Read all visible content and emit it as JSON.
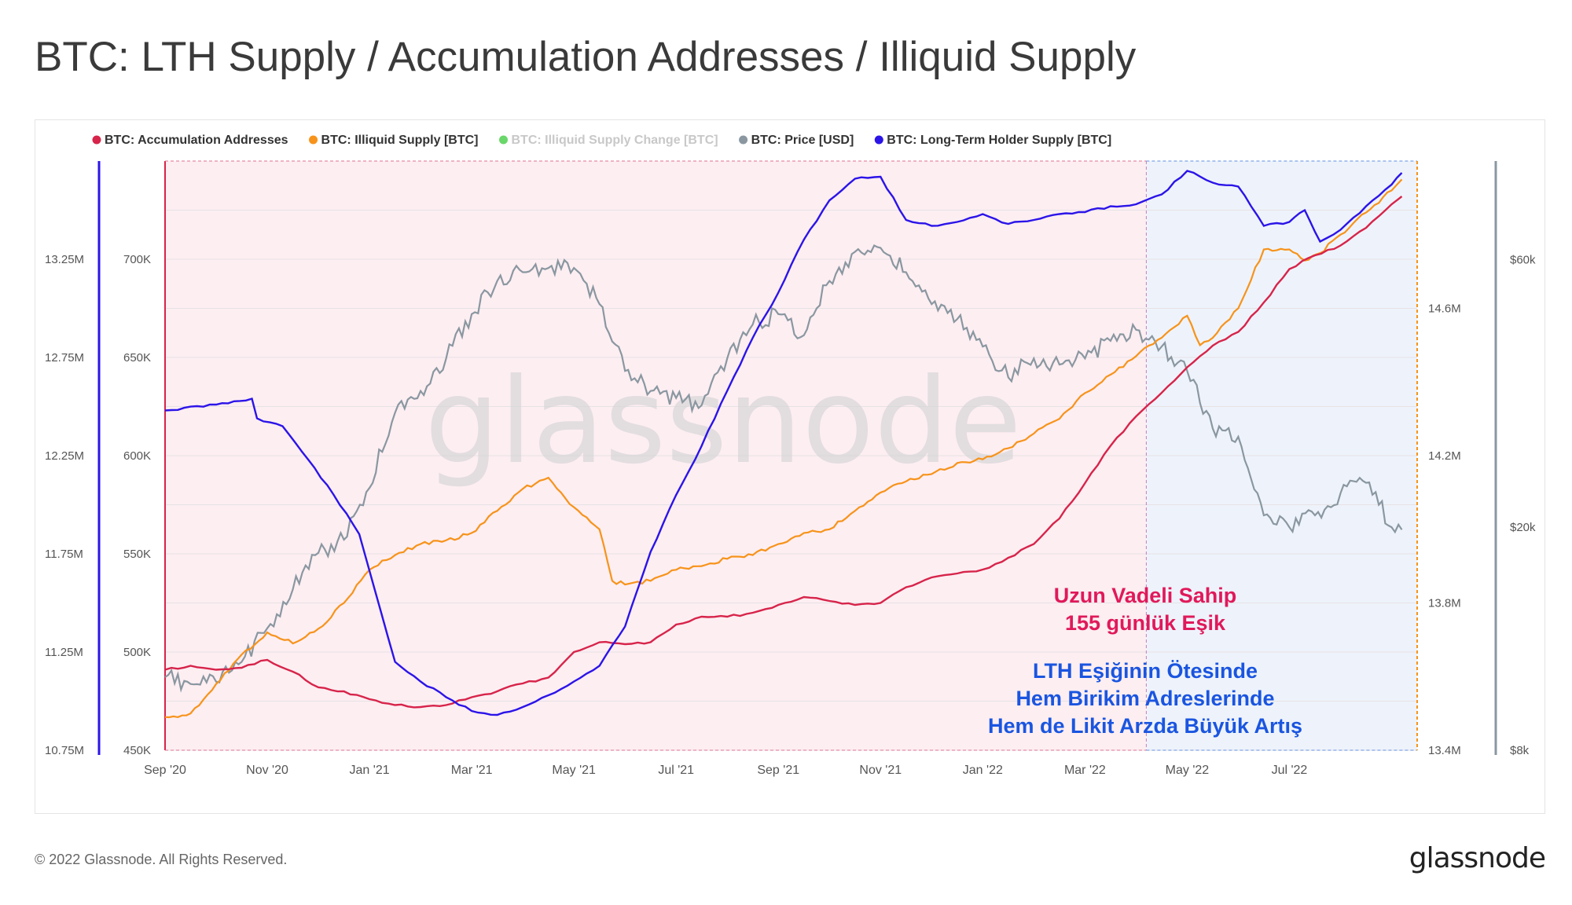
{
  "header": {
    "title": "BTC: LTH Supply / Accumulation Addresses / Illiquid Supply"
  },
  "footer": {
    "copyright": "© 2022 Glassnode. All Rights Reserved.",
    "brand": "glassnode"
  },
  "watermark": "glassnode",
  "colors": {
    "accumulation": "#d7244a",
    "illiquid": "#f7931a",
    "illiquid_change": "#37c937",
    "price": "#8a97a0",
    "lth": "#2b14e8",
    "pink_region": "#fdeef2",
    "blue_region": "#eef3fb"
  },
  "annotations": {
    "threshold_title": "Uzun Vadeli Sahip",
    "threshold_sub": "155 günlük Eşik",
    "beyond_1": "LTH Eşiğinin Ötesinde",
    "beyond_2": "Hem Birikim Adreslerinde",
    "beyond_3": "Hem de Likit Arzda Büyük Artış"
  },
  "chart_data": {
    "type": "line",
    "title": "BTC: LTH Supply / Accumulation Addresses / Illiquid Supply",
    "legend_position": "top-left",
    "legend": [
      {
        "name": "BTC: Accumulation Addresses",
        "color": "#d7244a",
        "faded": false
      },
      {
        "name": "BTC: Illiquid Supply [BTC]",
        "color": "#f7931a",
        "faded": false
      },
      {
        "name": "BTC: Illiquid Supply Change [BTC]",
        "color": "#37c937",
        "faded": true
      },
      {
        "name": "BTC: Price [USD]",
        "color": "#8a97a0",
        "faded": false
      },
      {
        "name": "BTC: Long-Term Holder Supply [BTC]",
        "color": "#2b14e8",
        "faded": false
      }
    ],
    "x_range_months": [
      0,
      24.5
    ],
    "x_ticks": [
      {
        "m": 0,
        "label": "Sep '20"
      },
      {
        "m": 2,
        "label": "Nov '20"
      },
      {
        "m": 4,
        "label": "Jan '21"
      },
      {
        "m": 6,
        "label": "Mar '21"
      },
      {
        "m": 8,
        "label": "May '21"
      },
      {
        "m": 10,
        "label": "Jul '21"
      },
      {
        "m": 12,
        "label": "Sep '21"
      },
      {
        "m": 14,
        "label": "Nov '21"
      },
      {
        "m": 16,
        "label": "Jan '22"
      },
      {
        "m": 18,
        "label": "Mar '22"
      },
      {
        "m": 20,
        "label": "May '22"
      },
      {
        "m": 22,
        "label": "Jul '22"
      }
    ],
    "regions": [
      {
        "name": "lth-threshold",
        "from_m": 0,
        "to_m": 19.2
      },
      {
        "name": "beyond-threshold",
        "from_m": 19.2,
        "to_m": 24.5
      }
    ],
    "axes": {
      "lth": {
        "range": [
          10.75,
          13.75
        ],
        "ticks": [
          "10.75M",
          "11.25M",
          "11.75M",
          "12.25M",
          "12.75M",
          "13.25M"
        ],
        "tick_values": [
          10.75,
          11.25,
          11.75,
          12.25,
          12.75,
          13.25
        ]
      },
      "accumulation": {
        "range": [
          450,
          750
        ],
        "ticks": [
          "450K",
          "500K",
          "550K",
          "600K",
          "650K",
          "700K"
        ],
        "tick_values": [
          450,
          500,
          550,
          600,
          650,
          700
        ]
      },
      "illiquid": {
        "range": [
          13.4,
          15.0
        ],
        "ticks": [
          "13.4M",
          "13.8M",
          "14.2M",
          "14.6M"
        ],
        "tick_values": [
          13.4,
          13.8,
          14.2,
          14.6
        ]
      },
      "price": {
        "log": true,
        "range": [
          8000,
          90000
        ],
        "ticks": [
          "$8k",
          "$20k",
          "$60k"
        ],
        "tick_values": [
          8000,
          20000,
          60000
        ]
      }
    },
    "series": [
      {
        "name": "BTC: Long-Term Holder Supply [BTC]",
        "axis": "lth",
        "unit": "M BTC",
        "points": [
          [
            0,
            12.48
          ],
          [
            1,
            12.51
          ],
          [
            1.7,
            12.54
          ],
          [
            1.8,
            12.44
          ],
          [
            2.3,
            12.4
          ],
          [
            2.8,
            12.23
          ],
          [
            3.3,
            12.05
          ],
          [
            3.8,
            11.85
          ],
          [
            4.1,
            11.57
          ],
          [
            4.5,
            11.2
          ],
          [
            5,
            11.1
          ],
          [
            5.5,
            11.02
          ],
          [
            6,
            10.95
          ],
          [
            6.5,
            10.93
          ],
          [
            7,
            10.97
          ],
          [
            7.5,
            11.03
          ],
          [
            8,
            11.1
          ],
          [
            8.5,
            11.18
          ],
          [
            9,
            11.38
          ],
          [
            9.5,
            11.76
          ],
          [
            10,
            12.05
          ],
          [
            10.5,
            12.3
          ],
          [
            11,
            12.58
          ],
          [
            11.5,
            12.85
          ],
          [
            12,
            13.08
          ],
          [
            12.5,
            13.35
          ],
          [
            13,
            13.55
          ],
          [
            13.5,
            13.66
          ],
          [
            14,
            13.67
          ],
          [
            14.5,
            13.45
          ],
          [
            15,
            13.42
          ],
          [
            15.5,
            13.44
          ],
          [
            16,
            13.48
          ],
          [
            16.5,
            13.43
          ],
          [
            17,
            13.45
          ],
          [
            17.5,
            13.48
          ],
          [
            18,
            13.49
          ],
          [
            18.5,
            13.52
          ],
          [
            19,
            13.53
          ],
          [
            19.5,
            13.58
          ],
          [
            20,
            13.7
          ],
          [
            20.5,
            13.64
          ],
          [
            21,
            13.62
          ],
          [
            21.5,
            13.42
          ],
          [
            22,
            13.44
          ],
          [
            22.3,
            13.5
          ],
          [
            22.6,
            13.34
          ],
          [
            23,
            13.4
          ],
          [
            23.5,
            13.52
          ],
          [
            24,
            13.63
          ],
          [
            24.2,
            13.69
          ]
        ]
      },
      {
        "name": "BTC: Accumulation Addresses",
        "axis": "accumulation",
        "unit": "K",
        "points": [
          [
            0,
            491
          ],
          [
            0.5,
            493
          ],
          [
            1,
            491
          ],
          [
            1.5,
            492
          ],
          [
            2,
            496
          ],
          [
            2.5,
            490
          ],
          [
            3,
            482
          ],
          [
            3.5,
            480
          ],
          [
            4,
            476
          ],
          [
            4.5,
            473
          ],
          [
            5,
            472
          ],
          [
            5.5,
            473
          ],
          [
            6,
            477
          ],
          [
            6.5,
            480
          ],
          [
            7,
            484
          ],
          [
            7.5,
            487
          ],
          [
            8,
            500
          ],
          [
            8.5,
            505
          ],
          [
            9,
            504
          ],
          [
            9.5,
            505
          ],
          [
            10,
            514
          ],
          [
            10.5,
            518
          ],
          [
            11,
            518
          ],
          [
            11.5,
            520
          ],
          [
            12,
            524
          ],
          [
            12.5,
            528
          ],
          [
            13,
            526
          ],
          [
            13.5,
            524
          ],
          [
            14,
            525
          ],
          [
            14.5,
            533
          ],
          [
            15,
            538
          ],
          [
            15.5,
            540
          ],
          [
            16,
            542
          ],
          [
            16.5,
            548
          ],
          [
            17,
            555
          ],
          [
            17.5,
            568
          ],
          [
            18,
            586
          ],
          [
            18.5,
            605
          ],
          [
            19,
            620
          ],
          [
            19.5,
            632
          ],
          [
            20,
            645
          ],
          [
            20.5,
            656
          ],
          [
            21,
            663
          ],
          [
            21.5,
            678
          ],
          [
            22,
            695
          ],
          [
            22.5,
            702
          ],
          [
            23,
            707
          ],
          [
            23.5,
            716
          ],
          [
            24,
            728
          ],
          [
            24.2,
            732
          ]
        ]
      },
      {
        "name": "BTC: Illiquid Supply [BTC]",
        "axis": "illiquid",
        "unit": "M BTC",
        "points": [
          [
            0,
            13.49
          ],
          [
            0.5,
            13.5
          ],
          [
            1,
            13.58
          ],
          [
            1.5,
            13.66
          ],
          [
            2,
            13.72
          ],
          [
            2.5,
            13.69
          ],
          [
            3,
            13.73
          ],
          [
            3.5,
            13.8
          ],
          [
            4,
            13.89
          ],
          [
            4.5,
            13.93
          ],
          [
            5,
            13.96
          ],
          [
            5.5,
            13.97
          ],
          [
            6,
            13.99
          ],
          [
            6.5,
            14.05
          ],
          [
            7,
            14.11
          ],
          [
            7.5,
            14.14
          ],
          [
            8,
            14.06
          ],
          [
            8.5,
            14.0
          ],
          [
            8.75,
            13.86
          ],
          [
            9,
            13.85
          ],
          [
            9.5,
            13.86
          ],
          [
            10,
            13.89
          ],
          [
            10.5,
            13.9
          ],
          [
            11,
            13.92
          ],
          [
            11.5,
            13.93
          ],
          [
            12,
            13.96
          ],
          [
            12.5,
            13.99
          ],
          [
            13,
            14.0
          ],
          [
            13.5,
            14.05
          ],
          [
            14,
            14.1
          ],
          [
            14.5,
            14.13
          ],
          [
            15,
            14.15
          ],
          [
            15.5,
            14.18
          ],
          [
            16,
            14.19
          ],
          [
            16.5,
            14.22
          ],
          [
            17,
            14.26
          ],
          [
            17.5,
            14.3
          ],
          [
            18,
            14.37
          ],
          [
            18.5,
            14.42
          ],
          [
            19,
            14.47
          ],
          [
            19.5,
            14.52
          ],
          [
            20,
            14.58
          ],
          [
            20.25,
            14.5
          ],
          [
            20.5,
            14.52
          ],
          [
            21,
            14.6
          ],
          [
            21.5,
            14.76
          ],
          [
            22,
            14.76
          ],
          [
            22.3,
            14.73
          ],
          [
            22.6,
            14.75
          ],
          [
            23,
            14.8
          ],
          [
            23.5,
            14.86
          ],
          [
            24,
            14.92
          ],
          [
            24.2,
            14.95
          ]
        ]
      },
      {
        "name": "BTC: Price [USD]",
        "axis": "price",
        "unit": "USD",
        "points": [
          [
            0,
            10800
          ],
          [
            0.5,
            10500
          ],
          [
            1,
            10600
          ],
          [
            1.5,
            11500
          ],
          [
            2,
            13200
          ],
          [
            2.5,
            15500
          ],
          [
            3,
            18000
          ],
          [
            3.5,
            19000
          ],
          [
            4,
            23500
          ],
          [
            4.5,
            32000
          ],
          [
            5,
            35000
          ],
          [
            5.5,
            40000
          ],
          [
            6,
            48000
          ],
          [
            6.5,
            55000
          ],
          [
            7,
            57000
          ],
          [
            7.5,
            58000
          ],
          [
            8,
            58000
          ],
          [
            8.5,
            50000
          ],
          [
            9,
            38000
          ],
          [
            9.5,
            35000
          ],
          [
            10,
            34000
          ],
          [
            10.5,
            33000
          ],
          [
            11,
            40000
          ],
          [
            11.5,
            46000
          ],
          [
            12,
            48000
          ],
          [
            12.5,
            44000
          ],
          [
            13,
            55000
          ],
          [
            13.5,
            62000
          ],
          [
            14,
            63000
          ],
          [
            14.5,
            57000
          ],
          [
            15,
            50000
          ],
          [
            15.5,
            47000
          ],
          [
            16,
            42000
          ],
          [
            16.5,
            37000
          ],
          [
            17,
            40000
          ],
          [
            17.5,
            39000
          ],
          [
            18,
            40000
          ],
          [
            18.5,
            43000
          ],
          [
            19,
            45000
          ],
          [
            19.5,
            42000
          ],
          [
            20,
            38000
          ],
          [
            20.5,
            30000
          ],
          [
            21,
            29000
          ],
          [
            21.5,
            21000
          ],
          [
            22,
            20000
          ],
          [
            22.5,
            21000
          ],
          [
            23,
            23000
          ],
          [
            23.5,
            24000
          ],
          [
            24,
            20000
          ],
          [
            24.2,
            19800
          ]
        ]
      }
    ]
  }
}
